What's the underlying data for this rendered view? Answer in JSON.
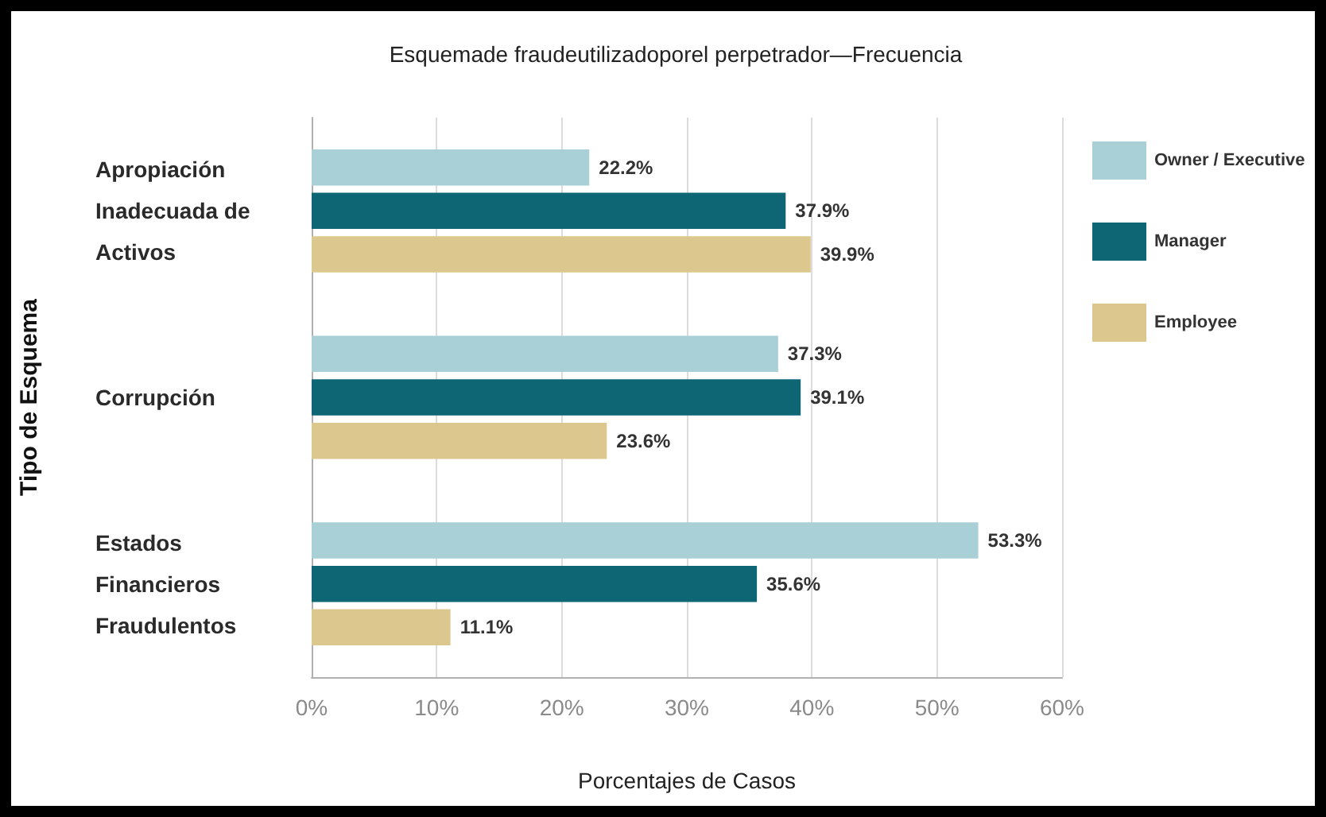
{
  "chart_data": {
    "type": "bar",
    "orientation": "horizontal",
    "title": "Esquemade fraudeutilizadoporel perpetrador—Frecuencia",
    "xlabel": "Porcentajes de Casos",
    "ylabel": "Tipo de Esquema",
    "categories": [
      "Apropiación Inadecuada de Activos",
      "Corrupción",
      "Estados Financieros Fraudulentos"
    ],
    "series": [
      {
        "name": "Owner / Executive",
        "color": "#a9d0d6",
        "values": [
          22.2,
          37.3,
          53.3
        ],
        "value_labels": [
          "22.2%",
          "37.3%",
          "53.3%"
        ]
      },
      {
        "name": "Manager",
        "color": "#0e6675",
        "values": [
          37.9,
          39.1,
          35.6
        ],
        "value_labels": [
          "37.9%",
          "39.1%",
          "35.6%"
        ]
      },
      {
        "name": "Employee",
        "color": "#dcc88e",
        "values": [
          39.9,
          23.6,
          11.1
        ],
        "value_labels": [
          "39.9%",
          "23.6%",
          "11.1%"
        ]
      }
    ],
    "xlim": [
      0,
      60
    ],
    "xticks": [
      {
        "value": 0,
        "label": "0%"
      },
      {
        "value": 10,
        "label": "10%"
      },
      {
        "value": 20,
        "label": "20%"
      },
      {
        "value": 30,
        "label": "30%"
      },
      {
        "value": 40,
        "label": "40%"
      },
      {
        "value": 50,
        "label": "50%"
      },
      {
        "value": 60,
        "label": "60%"
      }
    ],
    "grid": "x",
    "legend": "right"
  }
}
